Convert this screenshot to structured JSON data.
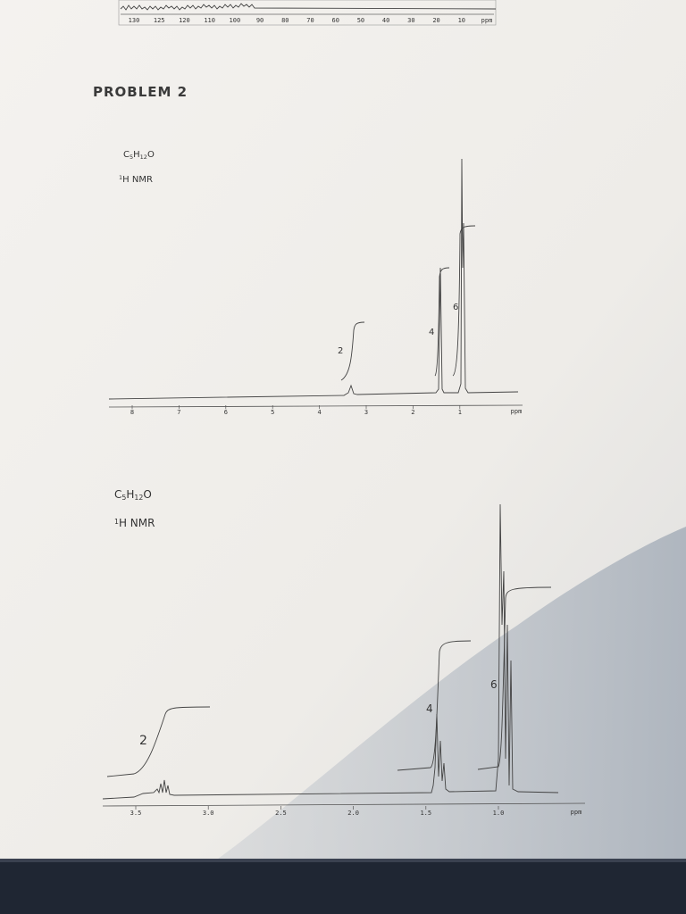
{
  "top_ruler": {
    "labels": [
      "130",
      "125",
      "120",
      "110",
      "100",
      "90",
      "80",
      "70",
      "60",
      "50",
      "40",
      "30",
      "20",
      "10",
      "ppm"
    ]
  },
  "header": {
    "title": "PROBLEM 2"
  },
  "spectra": [
    {
      "formula": [
        "C",
        "5",
        "H",
        "12",
        "O"
      ],
      "method": [
        "1",
        "H NMR"
      ],
      "integrations": [
        "2",
        "4",
        "6"
      ],
      "axis_labels": [
        "8",
        "7",
        "6",
        "5",
        "4",
        "3",
        "2",
        "1"
      ],
      "axis_unit": "ppm"
    },
    {
      "formula": [
        "C",
        "5",
        "H",
        "12",
        "O"
      ],
      "method": [
        "1",
        "H NMR"
      ],
      "integrations": [
        "2",
        "4",
        "6"
      ],
      "axis_labels": [
        "3.5",
        "3.0",
        "2.5",
        "2.0",
        "1.5",
        "1.0"
      ],
      "axis_unit": "ppm"
    }
  ]
}
